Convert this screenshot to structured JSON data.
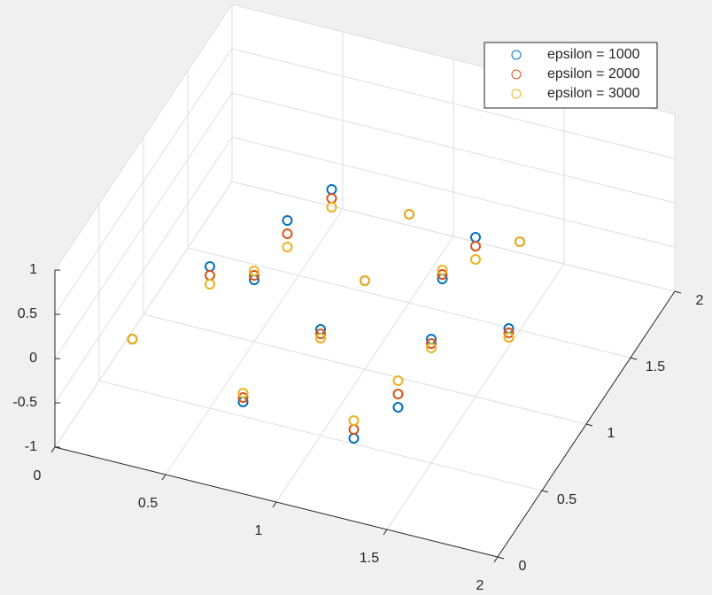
{
  "chart_data": {
    "type": "scatter3d",
    "xlim": [
      0,
      2
    ],
    "ylim": [
      0,
      2
    ],
    "zlim": [
      -1,
      1
    ],
    "xticks": [
      0,
      0.5,
      1,
      1.5,
      2
    ],
    "yticks": [
      0,
      0.5,
      1,
      1.5,
      2
    ],
    "zticks": [
      -1,
      -0.5,
      0,
      0.5,
      1
    ],
    "grid": true,
    "legend": "top-right",
    "series": [
      {
        "name": "epsilon = 1000",
        "color": "#0072bd",
        "x": [
          0.25,
          0.5,
          0.75,
          0.75,
          1,
          1,
          1.25,
          1.25,
          1.5,
          1.5,
          1.75,
          1.25,
          0.75,
          1,
          0.5,
          1.5
        ],
        "y": [
          0.25,
          0.5,
          0.25,
          0.75,
          1,
          0.5,
          0.75,
          0.25,
          0.5,
          1,
          0.75,
          1.25,
          1.25,
          1.5,
          1,
          1.5
        ],
        "z": [
          0,
          0.6,
          -0.4,
          0.9,
          0,
          0.2,
          -0.9,
          -0.5,
          0.4,
          0.8,
          0.3,
          -0.2,
          0.5,
          0,
          -0.3,
          0
        ]
      },
      {
        "name": "epsilon = 2000",
        "color": "#d95319",
        "x": [
          0.25,
          0.5,
          0.75,
          0.75,
          1,
          1,
          1.25,
          1.25,
          1.5,
          1.5,
          1.75,
          1.25,
          0.75,
          1,
          0.5,
          1.5
        ],
        "y": [
          0.25,
          0.5,
          0.25,
          0.75,
          1,
          0.5,
          0.75,
          0.25,
          0.5,
          1,
          0.75,
          1.25,
          1.25,
          1.5,
          1,
          1.5
        ],
        "z": [
          0,
          0.5,
          -0.35,
          0.75,
          0,
          0.15,
          -0.75,
          -0.4,
          0.35,
          0.7,
          0.25,
          -0.15,
          0.4,
          0,
          -0.25,
          0
        ]
      },
      {
        "name": "epsilon = 3000",
        "color": "#edb120",
        "x": [
          0.25,
          0.5,
          0.75,
          0.75,
          1,
          1,
          1.25,
          1.25,
          1.5,
          1.5,
          1.75,
          1.25,
          0.75,
          1,
          0.5,
          1.5
        ],
        "y": [
          0.25,
          0.5,
          0.25,
          0.75,
          1,
          0.5,
          0.75,
          0.25,
          0.5,
          1,
          0.75,
          1.25,
          1.25,
          1.5,
          1,
          1.5
        ],
        "z": [
          0,
          0.4,
          -0.3,
          0.6,
          0,
          0.1,
          -0.6,
          -0.3,
          0.3,
          0.55,
          0.2,
          -0.1,
          0.3,
          0,
          -0.2,
          0
        ]
      }
    ]
  }
}
